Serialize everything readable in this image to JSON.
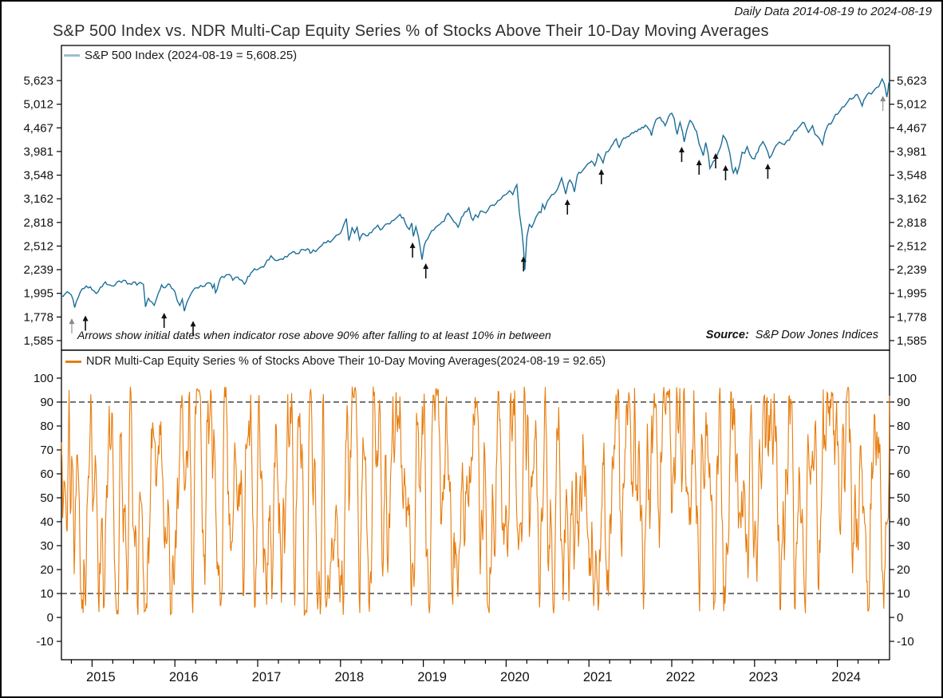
{
  "header": {
    "daily_data": "Daily Data 2014-08-19 to 2024-08-19"
  },
  "title": "S&P 500 Index vs. NDR Multi-Cap Equity Series % of Stocks Above Their 10-Day Moving Averages",
  "chart_data": [
    {
      "panel": "top",
      "type": "line",
      "name": "S&P 500 Index",
      "legend": "S&P 500 Index (2024-08-19 = 5,608.25)",
      "last_date": "2024-08-19",
      "last_value": 5608.25,
      "yscale": "log",
      "ytick_values": [
        5623,
        5012,
        4467,
        3981,
        3548,
        3162,
        2818,
        2512,
        2239,
        1995,
        1778,
        1585
      ],
      "ytick_labels": [
        "5,623",
        "5,012",
        "4,467",
        "3,981",
        "3,548",
        "3,162",
        "2,818",
        "2,512",
        "2,239",
        "1,995",
        "1,778",
        "1,585"
      ],
      "x_range": [
        2014.63,
        2024.63
      ],
      "line_color": "#1c6e99",
      "legend_swatch_color": "#9cbed0",
      "annotation": "Arrows show initial dates when indicator rose above 90% after falling to at least 10% in between",
      "source_label": "Source:",
      "source_value": "S&P Dow Jones Indices",
      "arrow_color": "#111111",
      "arrow_muted_color": "#8a8a8a",
      "arrows": [
        {
          "t": 2014.755,
          "v": 1766,
          "muted": true
        },
        {
          "t": 2014.92,
          "v": 1791
        },
        {
          "t": 2015.87,
          "v": 1815
        },
        {
          "t": 2016.22,
          "v": 1745
        },
        {
          "t": 2018.87,
          "v": 2557
        },
        {
          "t": 2019.03,
          "v": 2310
        },
        {
          "t": 2020.21,
          "v": 2390
        },
        {
          "t": 2020.74,
          "v": 3153
        },
        {
          "t": 2021.15,
          "v": 3654
        },
        {
          "t": 2022.12,
          "v": 4073
        },
        {
          "t": 2022.33,
          "v": 3827
        },
        {
          "t": 2022.53,
          "v": 3948
        },
        {
          "t": 2022.65,
          "v": 3725
        },
        {
          "t": 2023.16,
          "v": 3752
        },
        {
          "t": 2024.55,
          "v": 5224,
          "muted": true
        }
      ],
      "key_points": [
        [
          2014.63,
          1972
        ],
        [
          2014.67,
          1988
        ],
        [
          2014.7,
          2011
        ],
        [
          2014.73,
          1994
        ],
        [
          2014.75,
          1978
        ],
        [
          2014.79,
          1862
        ],
        [
          2014.83,
          1950
        ],
        [
          2014.88,
          2040
        ],
        [
          2014.93,
          2068
        ],
        [
          2014.98,
          2059
        ],
        [
          2015.02,
          2022
        ],
        [
          2015.05,
          1993
        ],
        [
          2015.1,
          2055
        ],
        [
          2015.16,
          2110
        ],
        [
          2015.2,
          2080
        ],
        [
          2015.24,
          2068
        ],
        [
          2015.3,
          2108
        ],
        [
          2015.38,
          2127
        ],
        [
          2015.45,
          2093
        ],
        [
          2015.5,
          2108
        ],
        [
          2015.54,
          2077
        ],
        [
          2015.58,
          2104
        ],
        [
          2015.62,
          2083
        ],
        [
          2015.645,
          1868
        ],
        [
          2015.68,
          1948
        ],
        [
          2015.72,
          1914
        ],
        [
          2015.75,
          1882
        ],
        [
          2015.8,
          1995
        ],
        [
          2015.84,
          2079
        ],
        [
          2015.88,
          2050
        ],
        [
          2015.92,
          2089
        ],
        [
          2015.96,
          2044
        ],
        [
          2016.0,
          2012
        ],
        [
          2016.03,
          1922
        ],
        [
          2016.06,
          1880
        ],
        [
          2016.09,
          1940
        ],
        [
          2016.115,
          1829
        ],
        [
          2016.15,
          1918
        ],
        [
          2016.2,
          1999
        ],
        [
          2016.26,
          2050
        ],
        [
          2016.31,
          2073
        ],
        [
          2016.36,
          2066
        ],
        [
          2016.42,
          2099
        ],
        [
          2016.455,
          2047
        ],
        [
          2016.475,
          2085
        ],
        [
          2016.49,
          2001
        ],
        [
          2016.53,
          2099
        ],
        [
          2016.57,
          2166
        ],
        [
          2016.62,
          2184
        ],
        [
          2016.66,
          2187
        ],
        [
          2016.7,
          2126
        ],
        [
          2016.74,
          2160
        ],
        [
          2016.78,
          2133
        ],
        [
          2016.81,
          2126
        ],
        [
          2016.84,
          2085
        ],
        [
          2016.88,
          2165
        ],
        [
          2016.92,
          2205
        ],
        [
          2016.96,
          2249
        ],
        [
          2017.0,
          2239
        ],
        [
          2017.05,
          2271
        ],
        [
          2017.09,
          2298
        ],
        [
          2017.16,
          2396
        ],
        [
          2017.21,
          2344
        ],
        [
          2017.28,
          2359
        ],
        [
          2017.33,
          2388
        ],
        [
          2017.38,
          2416
        ],
        [
          2017.42,
          2440
        ],
        [
          2017.46,
          2420
        ],
        [
          2017.5,
          2425
        ],
        [
          2017.55,
          2470
        ],
        [
          2017.6,
          2478
        ],
        [
          2017.635,
          2426
        ],
        [
          2017.67,
          2465
        ],
        [
          2017.7,
          2445
        ],
        [
          2017.75,
          2500
        ],
        [
          2017.8,
          2557
        ],
        [
          2017.85,
          2579
        ],
        [
          2017.9,
          2585
        ],
        [
          2017.95,
          2649
        ],
        [
          2018.0,
          2674
        ],
        [
          2018.04,
          2790
        ],
        [
          2018.07,
          2873
        ],
        [
          2018.1,
          2581
        ],
        [
          2018.14,
          2745
        ],
        [
          2018.17,
          2677
        ],
        [
          2018.2,
          2752
        ],
        [
          2018.23,
          2588
        ],
        [
          2018.27,
          2670
        ],
        [
          2018.31,
          2640
        ],
        [
          2018.35,
          2678
        ],
        [
          2018.4,
          2728
        ],
        [
          2018.45,
          2780
        ],
        [
          2018.48,
          2718
        ],
        [
          2018.52,
          2760
        ],
        [
          2018.57,
          2801
        ],
        [
          2018.62,
          2840
        ],
        [
          2018.67,
          2875
        ],
        [
          2018.72,
          2931
        ],
        [
          2018.76,
          2885
        ],
        [
          2018.8,
          2768
        ],
        [
          2018.83,
          2723
        ],
        [
          2018.86,
          2810
        ],
        [
          2018.88,
          2633
        ],
        [
          2018.91,
          2760
        ],
        [
          2018.94,
          2633
        ],
        [
          2018.96,
          2506
        ],
        [
          2018.985,
          2351
        ],
        [
          2019.01,
          2510
        ],
        [
          2019.05,
          2596
        ],
        [
          2019.1,
          2707
        ],
        [
          2019.15,
          2754
        ],
        [
          2019.2,
          2793
        ],
        [
          2019.25,
          2834
        ],
        [
          2019.3,
          2946
        ],
        [
          2019.34,
          2880
        ],
        [
          2019.37,
          2826
        ],
        [
          2019.42,
          2752
        ],
        [
          2019.46,
          2890
        ],
        [
          2019.5,
          2964
        ],
        [
          2019.55,
          3026
        ],
        [
          2019.58,
          2883
        ],
        [
          2019.6,
          2847
        ],
        [
          2019.63,
          2926
        ],
        [
          2019.66,
          2888
        ],
        [
          2019.69,
          2978
        ],
        [
          2019.73,
          2962
        ],
        [
          2019.78,
          2992
        ],
        [
          2019.83,
          3067
        ],
        [
          2019.88,
          3094
        ],
        [
          2019.92,
          3141
        ],
        [
          2019.96,
          3205
        ],
        [
          2020.0,
          3231
        ],
        [
          2020.04,
          3289
        ],
        [
          2020.08,
          3226
        ],
        [
          2020.11,
          3338
        ],
        [
          2020.13,
          3386
        ],
        [
          2020.16,
          2954
        ],
        [
          2020.19,
          2711
        ],
        [
          2020.21,
          2481
        ],
        [
          2020.225,
          2237
        ],
        [
          2020.25,
          2627
        ],
        [
          2020.28,
          2790
        ],
        [
          2020.31,
          2750
        ],
        [
          2020.34,
          2830
        ],
        [
          2020.38,
          2930
        ],
        [
          2020.42,
          2955
        ],
        [
          2020.44,
          3080
        ],
        [
          2020.465,
          3009
        ],
        [
          2020.5,
          3130
        ],
        [
          2020.55,
          3226
        ],
        [
          2020.6,
          3271
        ],
        [
          2020.64,
          3385
        ],
        [
          2020.67,
          3500
        ],
        [
          2020.7,
          3340
        ],
        [
          2020.72,
          3237
        ],
        [
          2020.75,
          3420
        ],
        [
          2020.77,
          3465
        ],
        [
          2020.8,
          3400
        ],
        [
          2020.825,
          3270
        ],
        [
          2020.86,
          3550
        ],
        [
          2020.9,
          3585
        ],
        [
          2020.93,
          3638
        ],
        [
          2020.96,
          3700
        ],
        [
          2020.99,
          3756
        ],
        [
          2021.03,
          3800
        ],
        [
          2021.07,
          3714
        ],
        [
          2021.11,
          3935
        ],
        [
          2021.14,
          3870
        ],
        [
          2021.17,
          3768
        ],
        [
          2021.21,
          3975
        ],
        [
          2021.25,
          4020
        ],
        [
          2021.29,
          4128
        ],
        [
          2021.33,
          4233
        ],
        [
          2021.365,
          4063
        ],
        [
          2021.4,
          4200
        ],
        [
          2021.44,
          4247
        ],
        [
          2021.48,
          4280
        ],
        [
          2021.52,
          4360
        ],
        [
          2021.56,
          4395
        ],
        [
          2021.6,
          4437
        ],
        [
          2021.64,
          4480
        ],
        [
          2021.68,
          4524
        ],
        [
          2021.72,
          4443
        ],
        [
          2021.755,
          4300
        ],
        [
          2021.79,
          4545
        ],
        [
          2021.83,
          4680
        ],
        [
          2021.86,
          4701
        ],
        [
          2021.9,
          4594
        ],
        [
          2021.92,
          4513
        ],
        [
          2021.96,
          4710
        ],
        [
          2022.0,
          4797
        ],
        [
          2022.03,
          4670
        ],
        [
          2022.065,
          4326
        ],
        [
          2022.1,
          4589
        ],
        [
          2022.13,
          4380
        ],
        [
          2022.15,
          4171
        ],
        [
          2022.18,
          4411
        ],
        [
          2022.22,
          4631
        ],
        [
          2022.26,
          4530
        ],
        [
          2022.3,
          4390
        ],
        [
          2022.33,
          4131
        ],
        [
          2022.36,
          4001
        ],
        [
          2022.38,
          3901
        ],
        [
          2022.41,
          4158
        ],
        [
          2022.44,
          3930
        ],
        [
          2022.46,
          3667
        ],
        [
          2022.5,
          3790
        ],
        [
          2022.53,
          3830
        ],
        [
          2022.56,
          3960
        ],
        [
          2022.6,
          4130
        ],
        [
          2022.62,
          4305
        ],
        [
          2022.66,
          4199
        ],
        [
          2022.7,
          3955
        ],
        [
          2022.73,
          3655
        ],
        [
          2022.745,
          3585
        ],
        [
          2022.77,
          3678
        ],
        [
          2022.79,
          3577
        ],
        [
          2022.82,
          3730
        ],
        [
          2022.85,
          3965
        ],
        [
          2022.88,
          3946
        ],
        [
          2022.91,
          4076
        ],
        [
          2022.94,
          3930
        ],
        [
          2022.97,
          3852
        ],
        [
          2023.0,
          3839
        ],
        [
          2023.04,
          3972
        ],
        [
          2023.08,
          4119
        ],
        [
          2023.1,
          4179
        ],
        [
          2023.13,
          4090
        ],
        [
          2023.16,
          3970
        ],
        [
          2023.18,
          3856
        ],
        [
          2023.22,
          3960
        ],
        [
          2023.26,
          4100
        ],
        [
          2023.3,
          4169
        ],
        [
          2023.33,
          4136
        ],
        [
          2023.36,
          4115
        ],
        [
          2023.4,
          4205
        ],
        [
          2023.44,
          4282
        ],
        [
          2023.48,
          4410
        ],
        [
          2023.52,
          4450
        ],
        [
          2023.55,
          4510
        ],
        [
          2023.58,
          4589
        ],
        [
          2023.62,
          4480
        ],
        [
          2023.65,
          4370
        ],
        [
          2023.68,
          4450
        ],
        [
          2023.7,
          4515
        ],
        [
          2023.73,
          4330
        ],
        [
          2023.76,
          4288
        ],
        [
          2023.79,
          4224
        ],
        [
          2023.82,
          4117
        ],
        [
          2023.85,
          4365
        ],
        [
          2023.88,
          4508
        ],
        [
          2023.92,
          4550
        ],
        [
          2023.96,
          4700
        ],
        [
          2024.0,
          4770
        ],
        [
          2024.03,
          4850
        ],
        [
          2024.06,
          4942
        ],
        [
          2024.1,
          5000
        ],
        [
          2024.13,
          5088
        ],
        [
          2024.17,
          5137
        ],
        [
          2024.2,
          5175
        ],
        [
          2024.24,
          5254
        ],
        [
          2024.27,
          5123
        ],
        [
          2024.3,
          4967
        ],
        [
          2024.34,
          5180
        ],
        [
          2024.38,
          5297
        ],
        [
          2024.41,
          5266
        ],
        [
          2024.44,
          5354
        ],
        [
          2024.47,
          5433
        ],
        [
          2024.5,
          5460
        ],
        [
          2024.52,
          5567
        ],
        [
          2024.54,
          5667
        ],
        [
          2024.565,
          5544
        ],
        [
          2024.58,
          5399
        ],
        [
          2024.597,
          5186
        ],
        [
          2024.61,
          5344
        ],
        [
          2024.62,
          5554
        ],
        [
          2024.63,
          5608.25
        ]
      ]
    },
    {
      "panel": "bottom",
      "type": "line",
      "name": "NDR Multi-Cap Equity Series % of Stocks Above Their 10-Day Moving Averages",
      "legend": "NDR Multi-Cap Equity Series % of Stocks Above Their 10-Day Moving Averages(2024-08-19 = 92.65)",
      "last_date": "2024-08-19",
      "last_value": 92.65,
      "ytick_values": [
        100,
        90,
        80,
        70,
        60,
        50,
        40,
        30,
        20,
        10,
        0,
        -10
      ],
      "ytick_labels": [
        "100",
        "90",
        "80",
        "70",
        "60",
        "50",
        "40",
        "30",
        "20",
        "10",
        "0",
        "-10"
      ],
      "thresholds": [
        90,
        10
      ],
      "threshold_color": "#222222",
      "x_range": [
        2014.63,
        2024.63
      ],
      "xtick_years": [
        "2015",
        "2016",
        "2017",
        "2018",
        "2019",
        "2020",
        "2021",
        "2022",
        "2023",
        "2024"
      ],
      "line_color": "#e87c0c",
      "legend_swatch_color": "#e87c0c",
      "series_synthesis": {
        "seed": 987654321,
        "n": 1300,
        "momentum": 0.48,
        "shock": 40,
        "pull": 0.1,
        "center": 56,
        "min": 1,
        "max": 96.5,
        "end_value": 92.65,
        "note": "daily oscillator 0-100, frequent peaks above the 90 dashed line and troughs below the 10 dashed line"
      }
    }
  ]
}
